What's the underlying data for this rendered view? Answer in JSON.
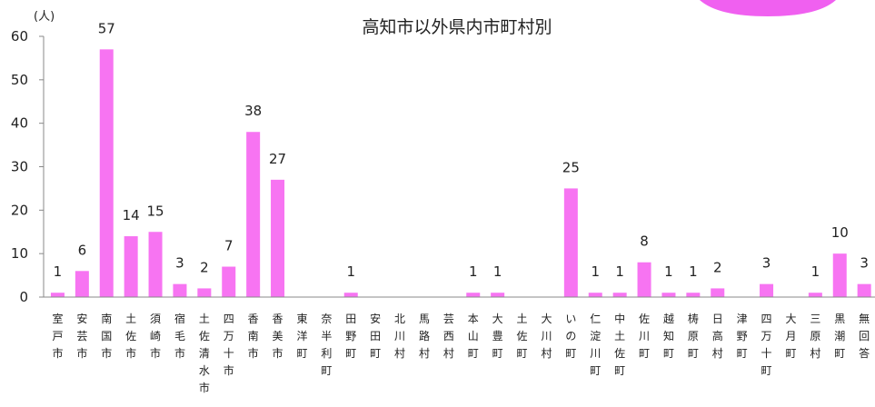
{
  "chart_data": {
    "type": "bar",
    "title": "高知市以外県内市町村別",
    "unit": "(人)",
    "ylim": [
      0,
      60
    ],
    "yticks": [
      0,
      10,
      20,
      30,
      40,
      50,
      60
    ],
    "bar_color": "#f774f2",
    "accent_color": "#f060f0",
    "categories": [
      "室戸市",
      "安芸市",
      "南国市",
      "土佐市",
      "須崎市",
      "宿毛市",
      "土佐清水市",
      "四万十市",
      "香南市",
      "香美市",
      "東洋町",
      "奈半利町",
      "田野町",
      "安田町",
      "北川村",
      "馬路村",
      "芸西村",
      "本山町",
      "大豊町",
      "土佐町",
      "大川村",
      "いの町",
      "仁淀川町",
      "中土佐町",
      "佐川町",
      "越知町",
      "梼原町",
      "日高村",
      "津野町",
      "四万十町",
      "大月町",
      "三原村",
      "黒潮町",
      "無回答"
    ],
    "values": [
      1,
      6,
      57,
      14,
      15,
      3,
      2,
      7,
      38,
      27,
      0,
      0,
      1,
      0,
      0,
      0,
      0,
      1,
      1,
      0,
      0,
      25,
      1,
      1,
      8,
      1,
      1,
      2,
      0,
      3,
      0,
      1,
      10,
      3
    ],
    "value_labels": [
      "1",
      "6",
      "57",
      "14",
      "15",
      "3",
      "2",
      "7",
      "38",
      "27",
      "",
      "",
      "1",
      "",
      "",
      "",
      "",
      "1",
      "1",
      "",
      "",
      "25",
      "1",
      "1",
      "8",
      "1",
      "1",
      "2",
      "",
      "3",
      "",
      "1",
      "10",
      "3"
    ],
    "grid": false
  }
}
